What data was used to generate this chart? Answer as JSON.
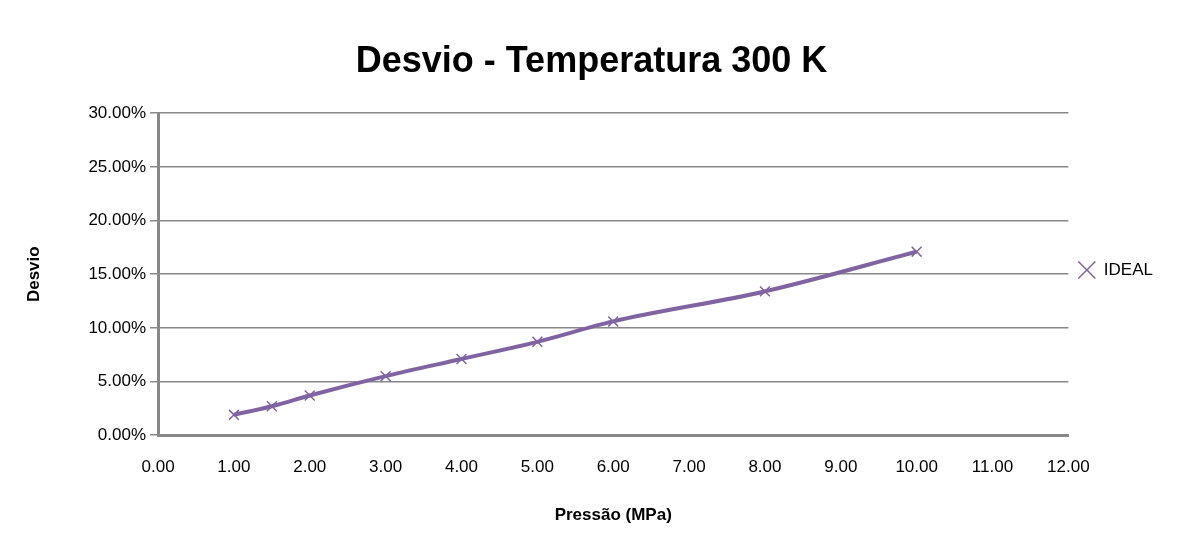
{
  "chart_data": {
    "type": "line",
    "title": "Desvio - Temperatura 300 K",
    "xlabel": "Pressão (MPa)",
    "ylabel": "Desvio",
    "x": [
      1,
      1.5,
      2,
      3,
      4,
      5,
      6,
      8,
      10
    ],
    "series": [
      {
        "name": "IDEAL",
        "color": "#8064a2",
        "values": [
          1.9,
          2.7,
          3.7,
          5.5,
          7.1,
          8.7,
          10.6,
          13.4,
          17.1
        ]
      }
    ],
    "xlim": [
      0,
      12
    ],
    "xticks": [
      {
        "value": 0,
        "label": "0.00"
      },
      {
        "value": 1,
        "label": "1.00"
      },
      {
        "value": 2,
        "label": "2.00"
      },
      {
        "value": 3,
        "label": "3.00"
      },
      {
        "value": 4,
        "label": "4.00"
      },
      {
        "value": 5,
        "label": "5.00"
      },
      {
        "value": 6,
        "label": "6.00"
      },
      {
        "value": 7,
        "label": "7.00"
      },
      {
        "value": 8,
        "label": "8.00"
      },
      {
        "value": 9,
        "label": "9.00"
      },
      {
        "value": 10,
        "label": "10.00"
      },
      {
        "value": 11,
        "label": "11.00"
      },
      {
        "value": 12,
        "label": "12.00"
      }
    ],
    "ylim": [
      0,
      30
    ],
    "yticks": [
      {
        "value": 0,
        "label": "0.00%"
      },
      {
        "value": 5,
        "label": "5.00%"
      },
      {
        "value": 10,
        "label": "10.00%"
      },
      {
        "value": 15,
        "label": "15.00%"
      },
      {
        "value": 20,
        "label": "20.00%"
      },
      {
        "value": 25,
        "label": "25.00%"
      },
      {
        "value": 30,
        "label": "30.00%"
      }
    ],
    "grid": "y",
    "legend": "right",
    "marker": "cross",
    "line_style": "solid"
  }
}
